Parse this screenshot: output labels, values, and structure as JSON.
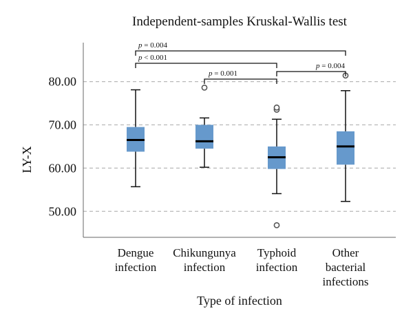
{
  "chart_data": {
    "type": "box",
    "title": "Independent-samples Kruskal-Wallis test",
    "xlabel": "Type of infection",
    "ylabel": "LY-X",
    "ylim": [
      44,
      89
    ],
    "yticks": [
      50,
      60,
      70,
      80
    ],
    "ytick_labels": [
      "50.00",
      "60.00",
      "70.00",
      "80.00"
    ],
    "grid": "horizontal-dashed",
    "box_color": "#6699cc",
    "median_color": "#000000",
    "categories": [
      {
        "lines": [
          "Dengue",
          "infection"
        ],
        "whisker_low": 55.7,
        "q1": 63.8,
        "median": 66.5,
        "q3": 69.5,
        "whisker_high": 78.1,
        "outliers": []
      },
      {
        "lines": [
          "Chikungunya",
          "infection"
        ],
        "whisker_low": 60.2,
        "q1": 64.5,
        "median": 66.2,
        "q3": 70.0,
        "whisker_high": 71.6,
        "outliers": [
          78.6
        ]
      },
      {
        "lines": [
          "Typhoid",
          "infection"
        ],
        "whisker_low": 54.1,
        "q1": 59.8,
        "median": 62.5,
        "q3": 65.0,
        "whisker_high": 71.3,
        "outliers": [
          73.5,
          74.0,
          46.8
        ]
      },
      {
        "lines": [
          "Other",
          "bacterial",
          "infections"
        ],
        "whisker_low": 52.3,
        "q1": 60.8,
        "median": 65.0,
        "q3": 68.5,
        "whisker_high": 77.9,
        "outliers": [
          81.4
        ]
      }
    ],
    "comparisons": [
      {
        "from": 0,
        "to": 3,
        "label": "p = 0.004",
        "level": 3
      },
      {
        "from": 0,
        "to": 2,
        "label": "p < 0.001",
        "level": 2
      },
      {
        "from": 1,
        "to": 2,
        "label": "p = 0.001",
        "level": 1
      },
      {
        "from": 2,
        "to": 3,
        "label": "p = 0.004",
        "level": 0
      }
    ]
  }
}
